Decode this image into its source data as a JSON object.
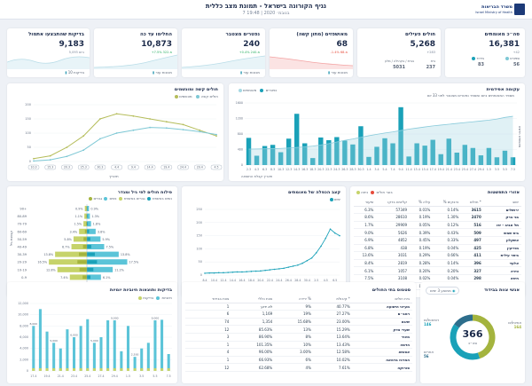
{
  "header": {
    "title": "נגיף הקורונה בישראל - תמונת מצב כללית",
    "date": "7 בנובמ׳ 2020 | 19:48"
  },
  "logo": {
    "name": "משרד הבריאות",
    "subname": "Israel Ministry of Health"
  },
  "kpis": [
    {
      "title": "סה״כ מאומתים",
      "value": "16,381",
      "sub": "+42",
      "foot": [
        {
          "label": "ספורט",
          "value": "56"
        },
        {
          "label": "בידוד",
          "value": "83"
        }
      ]
    },
    {
      "title": "חולים פעילים",
      "value": "5,268",
      "sub": "+283",
      "foot": [
        {
          "label": "בית",
          "value": "237"
        },
        {
          "label": "בבית / בקהילה / מלון",
          "value": "5031"
        }
      ]
    },
    {
      "title": "מאושפזים (מתון קשה)",
      "value": "68",
      "sub": "-1.4% מ-68",
      "foot": [
        {
          "label": "מכונות עזר",
          "value": ""
        }
      ]
    },
    {
      "title": "נפטרים מצטבר",
      "value": "240",
      "sub": "+0.4% מ-240",
      "foot": [
        {
          "label": "מכונות עזר",
          "value": ""
        }
      ]
    },
    {
      "title": "החלימו עד כה",
      "value": "10,873",
      "sub": "+7.5% מ-322",
      "foot": [
        {
          "label": "מכונות עזר",
          "value": ""
        }
      ]
    },
    {
      "title": "בדיקות שהתבצעו אתמול",
      "value": "9,183",
      "sub": "5,093 ביום",
      "foot": [
        {
          "label": "בדיקות ",
          "value": "10"
        }
      ]
    }
  ],
  "epi": {
    "title": "עקומה אפידמית",
    "subtitle": "מספר המאומתים ביום ומספר נפטרים מצטבר לפני 33 יום",
    "legend": [
      {
        "label": "נפטרים",
        "color": "#a5d8e3"
      },
      {
        "label": "מאומתים",
        "color": "#1aa1b8"
      }
    ],
    "ylabel": "מאומתים חדשים",
    "xlabel": "תאריך קבלת התוצאה"
  },
  "severe": {
    "title": "חולים קשה ומונשמים",
    "legend": [
      {
        "label": "מונשמים",
        "color": "#7ec8d5"
      },
      {
        "label": "חולים קשה",
        "color": "#b5bd5b"
      }
    ],
    "xlabel": "תאריך"
  },
  "ageChart": {
    "title": "פילוח חולים לפי גיל ומגדר",
    "legend": [
      {
        "label": "גברים",
        "color": "#5bc4d8"
      },
      {
        "label": "נשים",
        "color": "#c6d36a"
      },
      {
        "label": "גברים באשפוז",
        "color": "#1aa1b8"
      },
      {
        "label": "נשים באשפוז",
        "color": "#a4b43e"
      }
    ],
    "ylabel": "קבוצת גיל"
  },
  "doubling": {
    "title": "קצב הכפלה של מאומתים",
    "legend": [
      {
        "label": "",
        "color": "#e74c3c"
      },
      {
        "label": "ימים",
        "color": "#1aa1b8"
      }
    ],
    "xlabel": "תאריך"
  },
  "cities": {
    "title": "אזורי התפשטות",
    "legend": [
      {
        "label": "כיתה",
        "color": "#e74c3c"
      },
      {
        "label": "בוגר חולים",
        "color": "#c6d36a"
      }
    ],
    "headers": [
      "ישוב",
      "חולים *",
      "% נדבקים",
      "% עליה",
      "קליטים בדקו",
      "שיעור"
    ],
    "rows": [
      [
        "ירושלים",
        "3615",
        "0.14%",
        "0.01%",
        "57349",
        "6.3%"
      ],
      [
        "בני ברק",
        "2470",
        "1.30%",
        "0.19%",
        "28610",
        "8.6%"
      ],
      [
        "תל אביב - יפו",
        "516",
        "0.12%",
        "0.05%",
        "29909",
        "1.7%"
      ],
      [
        "בית שמש",
        "509",
        "0.43%",
        "0.39%",
        "5626",
        "9.0%"
      ],
      [
        "אשקלון",
        "497",
        "0.33%",
        "0.45%",
        "4852",
        "6.9%"
      ],
      [
        "מודיעין",
        "425",
        "0.04%",
        "0.19%",
        "438",
        "6.8%"
      ],
      [
        "ביתר עילית",
        "411",
        "0.66%",
        "0.29%",
        "3031",
        "13.6%"
      ],
      [
        "אלעד",
        "396",
        "0.14%",
        "0.28%",
        "2819",
        "8.4%"
      ],
      [
        "טירה",
        "327",
        "0.20%",
        "0.20%",
        "1057",
        "6.1%"
      ],
      [
        "חיפה",
        "298",
        "0.04%",
        "0.02%",
        "3108",
        "7.5%"
      ],
      [
        "נתניה",
        "271",
        "0.02%",
        "0.03%",
        "6062",
        "4.2%"
      ]
    ]
  },
  "tests": {
    "title": "בדיקות ותוצאות חיוביות יומיות",
    "legend": [
      {
        "label": "בדיקות",
        "color": "#5bc4d8"
      },
      {
        "label": "חיוביות",
        "color": "#c6d36a"
      }
    ]
  },
  "hospitals": {
    "title": "סטטוס בתי החולים",
    "headers": [
      "בית חולים",
      "קיבולת *",
      "ירידה %",
      "צוות כללי",
      "צוות בבידוד"
    ],
    "rows": [
      [
        "מעייני הישועה",
        "40.77%",
        "9%",
        "לא ידוע",
        "1"
      ],
      [
        "רמב״ם",
        "27.27%",
        "19%",
        "1,169",
        "6"
      ],
      [
        "שיבא",
        "23.00%",
        "15.68%",
        "1,354",
        "74"
      ],
      [
        "שערי צדק",
        "15.29%",
        "13%",
        "85.63%",
        "12"
      ],
      [
        "מאיר",
        "13.64%",
        "8%",
        "86.90%",
        "3"
      ],
      [
        "הדסה",
        "13.43%",
        "10%",
        "101.35%",
        "1"
      ],
      [
        "אסותא",
        "12.58%",
        "3.00%",
        "96.00%",
        "4"
      ],
      [
        "המרכז ברמאה",
        "10.02%",
        "6%",
        "66.93%",
        "1"
      ],
      [
        "סורוקה",
        "7.61%",
        "4%",
        "62.68%",
        "12"
      ]
    ]
  },
  "staff": {
    "title": "אנשי צוות בבידוד",
    "total": "366",
    "total_label": "סה״כ",
    "legend": [
      {
        "label": "אחיות/ים",
        "value": "164"
      },
      {
        "label": "רופאות/ים",
        "value": "146"
      },
      {
        "label": "אחרים",
        "value": "56"
      }
    ],
    "filter_label": "ממוצע 3 ימים"
  },
  "chart_data": [
    {
      "type": "bar",
      "title": "עקומה אפידמית",
      "categories": [
        "2.3",
        "4.3",
        "6.3",
        "8.3",
        "10.3",
        "12.3",
        "14.3",
        "16.3",
        "18.3",
        "20.3",
        "22.3",
        "24.3",
        "26.3",
        "28.3",
        "30.3",
        "1.4",
        "3.4",
        "5.4",
        "7.4",
        "9.4",
        "11.4",
        "13.4",
        "15.4",
        "17.4",
        "19.4",
        "21.4",
        "23.4",
        "25.4",
        "27.4",
        "29.4",
        "1.5",
        "3.5",
        "5.5",
        "7.5"
      ],
      "series": [
        {
          "name": "מאומתים",
          "values": [
            700,
            240,
            490,
            520,
            330,
            680,
            1320,
            560,
            180,
            710,
            640,
            720,
            630,
            530,
            1000,
            210,
            470,
            690,
            560,
            1490,
            220,
            560,
            500,
            650,
            280,
            680,
            320,
            520,
            440,
            250,
            440,
            200,
            370,
            200
          ]
        },
        {
          "name": "נפטרים",
          "values": [
            0,
            1,
            2,
            3,
            5,
            8,
            12,
            16,
            22,
            30,
            40,
            52,
            64,
            74,
            86,
            98,
            108,
            118,
            126,
            136,
            146,
            154,
            162,
            170,
            176,
            182,
            188,
            194,
            200,
            206,
            212,
            220,
            232,
            240
          ]
        }
      ],
      "ylim": [
        0,
        1600
      ]
    },
    {
      "type": "line",
      "title": "חולים קשה ומונשמים",
      "categories": [
        "10.3",
        "15.3",
        "20.3",
        "25.3",
        "30.3",
        "4.4",
        "9.4",
        "14.4",
        "19.4",
        "24.4",
        "29.4",
        "4.5"
      ],
      "series": [
        {
          "name": "חולים קשה",
          "values": [
            10,
            20,
            50,
            90,
            150,
            168,
            160,
            150,
            140,
            130,
            110,
            90
          ]
        },
        {
          "name": "מונשמים",
          "values": [
            2,
            6,
            18,
            40,
            80,
            100,
            110,
            120,
            118,
            112,
            105,
            95
          ]
        }
      ],
      "ylim": [
        0,
        200
      ]
    },
    {
      "type": "bar",
      "title": "פילוח חולים לפי גיל ומגדר",
      "categories": [
        "90+",
        "80-89",
        "70-79",
        "60-69",
        "50-59",
        "40-49",
        "30-39",
        "20-29",
        "10-19",
        "0-9"
      ],
      "series": [
        {
          "name": "גברים",
          "values": [
            0.9,
            1.1,
            1.5,
            3.4,
            5.8,
            6.7,
            13.8,
            16.5,
            12.8,
            7.4
          ]
        },
        {
          "name": "נשים",
          "values": [
            0.9,
            1.3,
            1.8,
            3.8,
            5.9,
            7.5,
            13.8,
            17.5,
            11.2,
            6.1
          ]
        }
      ]
    },
    {
      "type": "line",
      "title": "קצב הכפלה של מאומתים",
      "categories": [
        "8.4",
        "9.4",
        "10.4",
        "11.4",
        "12.4",
        "13.4",
        "14.4",
        "15.4",
        "16.4",
        "17.4",
        "18.4",
        "19.4",
        "20.4",
        "21.4",
        "22.4",
        "23.4",
        "24.4",
        "25.4",
        "26.4",
        "27.4",
        "28.4",
        "29.4",
        "30.4",
        "1.5",
        "2.5",
        "3.5",
        "4.5",
        "5.5",
        "6.5",
        "7.5"
      ],
      "series": [
        {
          "name": "ימים",
          "values": [
            7,
            8,
            8,
            9,
            9,
            10,
            11,
            12,
            12,
            13,
            14,
            15,
            16,
            18,
            20,
            22,
            24,
            26,
            30,
            34,
            38,
            45,
            55,
            65,
            85,
            110,
            140,
            175,
            160,
            150
          ]
        }
      ],
      "ylim": [
        0,
        250
      ]
    },
    {
      "type": "bar",
      "title": "בדיקות ותוצאות חיוביות יומיות",
      "categories": [
        "17.4",
        "18.4",
        "19.4",
        "20.4",
        "21.4",
        "22.4",
        "23.4",
        "24.4",
        "25.4",
        "26.4",
        "27.4",
        "28.4",
        "29.4",
        "30.4",
        "1.5",
        "2.5",
        "3.5",
        "4.5",
        "5.5",
        "6.5",
        "7.5"
      ],
      "series": [
        {
          "name": "בדיקות",
          "values": [
            8000,
            11000,
            7000,
            5000,
            4000,
            7400,
            6000,
            8000,
            9200,
            5000,
            6000,
            9000,
            9000,
            3500,
            8000,
            2500,
            4000,
            5000,
            9000,
            9100,
            3000
          ]
        },
        {
          "name": "חיוביות",
          "values": [
            200,
            210,
            180,
            120,
            100,
            220,
            150,
            140,
            130,
            100,
            120,
            110,
            100,
            80,
            90,
            60,
            60,
            80,
            80,
            90,
            60
          ]
        }
      ],
      "ylim": [
        0,
        12000
      ]
    },
    {
      "type": "pie",
      "title": "אנשי צוות בבידוד",
      "categories": [
        "אחיות/ים",
        "רופאות/ים",
        "אחרים"
      ],
      "values": [
        164,
        146,
        56
      ]
    }
  ]
}
